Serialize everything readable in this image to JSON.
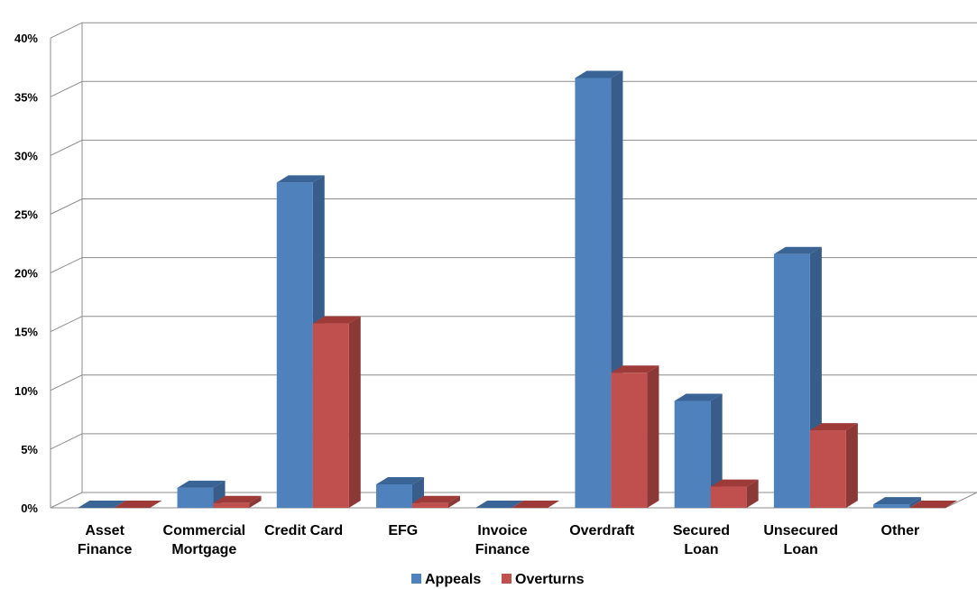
{
  "chart_data": {
    "type": "bar",
    "categories": [
      [
        "Asset",
        "Finance"
      ],
      [
        "Commercial",
        "Mortgage"
      ],
      [
        "Credit Card"
      ],
      [
        "EFG"
      ],
      [
        "Invoice",
        "Finance"
      ],
      [
        "Overdraft"
      ],
      [
        "Secured",
        "Loan"
      ],
      [
        "Unsecured",
        "Loan"
      ],
      [
        "Other"
      ]
    ],
    "series": [
      {
        "name": "Appeals",
        "values": [
          0,
          1.7,
          27.7,
          2.0,
          0,
          36.6,
          9.1,
          21.6,
          0.3
        ],
        "color": "#4F81BD",
        "side_color": "#385D8A",
        "top_color": "#3A6396"
      },
      {
        "name": "Overturns",
        "values": [
          0,
          0.4,
          15.7,
          0.4,
          0,
          11.5,
          1.8,
          6.6,
          0
        ],
        "color": "#C0504D",
        "side_color": "#8C3836",
        "top_color": "#9E3B39"
      }
    ],
    "yticks": [
      "0%",
      "5%",
      "10%",
      "15%",
      "20%",
      "25%",
      "30%",
      "35%",
      "40%"
    ],
    "ylim": [
      0,
      40
    ],
    "grid": true,
    "legend_position": "bottom"
  }
}
